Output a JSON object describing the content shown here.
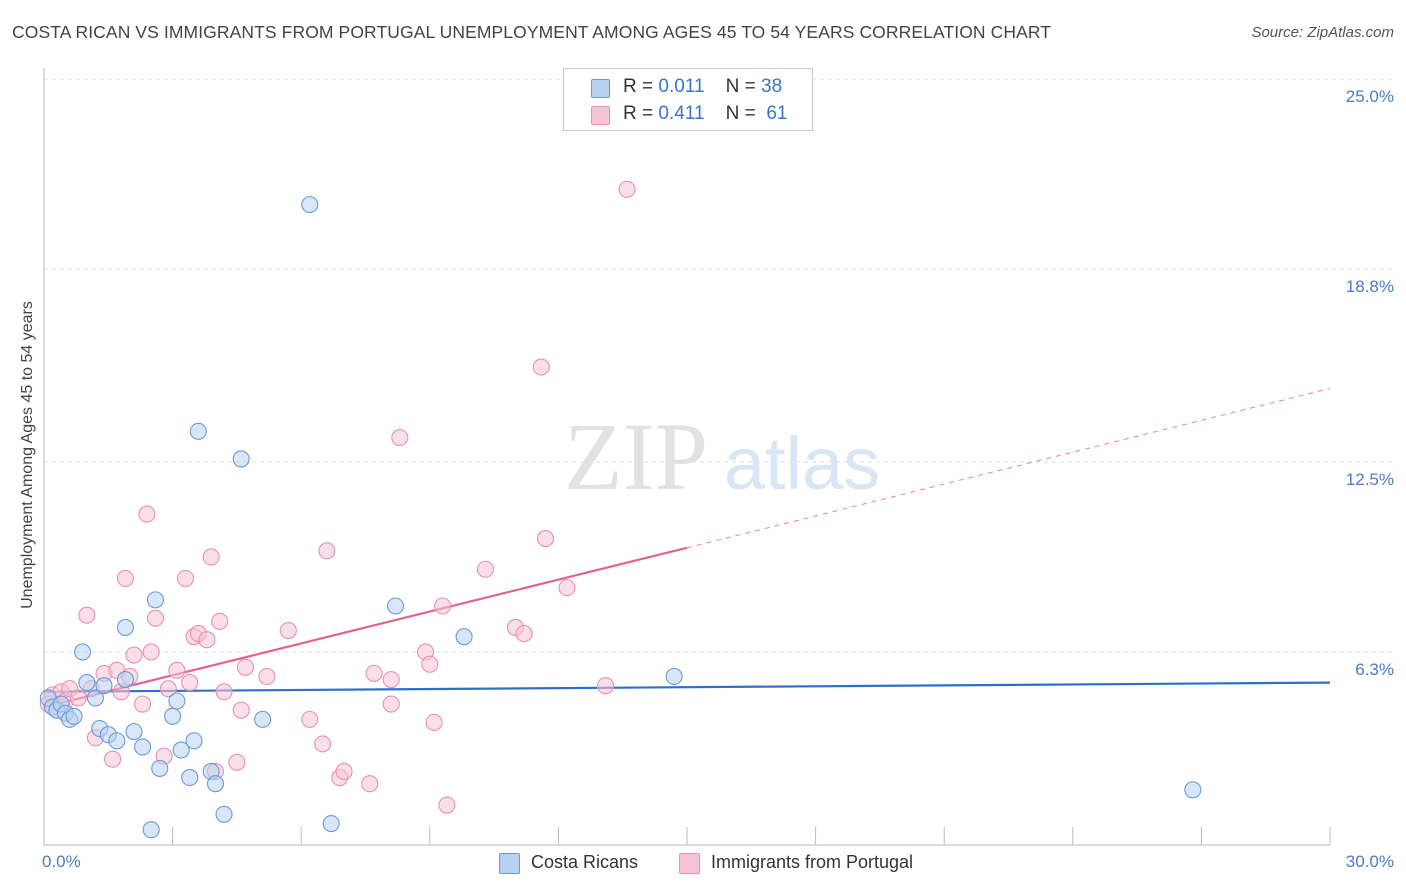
{
  "title": "COSTA RICAN VS IMMIGRANTS FROM PORTUGAL UNEMPLOYMENT AMONG AGES 45 TO 54 YEARS CORRELATION CHART",
  "source": "Source: ZipAtlas.com",
  "watermark": {
    "zip": "ZIP",
    "atlas": "atlas"
  },
  "legend": {
    "rows": [
      {
        "r_label": "R =",
        "r_value": "0.011",
        "n_label": "N =",
        "n_value": "38"
      },
      {
        "r_label": "R =",
        "r_value": "0.411",
        "n_label": "N =",
        "n_value": "61"
      }
    ]
  },
  "colors": {
    "blue_fill": "#b8d1f3",
    "blue_stroke": "#6a9ad8",
    "blue_line": "#2f6fcc",
    "pink_fill": "#f7c4d5",
    "pink_stroke": "#e891ad",
    "pink_line": "#e0648f",
    "tick_label": "#4a7cc7",
    "grid": "#dddddd"
  },
  "chart_data": {
    "type": "scatter",
    "title": "COSTA RICAN VS IMMIGRANTS FROM PORTUGAL UNEMPLOYMENT AMONG AGES 45 TO 54 YEARS CORRELATION CHART",
    "xlabel": "",
    "ylabel": "Unemployment Among Ages 45 to 54 years",
    "xlim": [
      0,
      30
    ],
    "ylim": [
      0,
      25
    ],
    "x_tick_labels": [
      "0.0%",
      "30.0%"
    ],
    "y_ticks": [
      6.3,
      12.5,
      18.8,
      25.0
    ],
    "y_tick_labels": [
      "6.3%",
      "12.5%",
      "18.8%",
      "25.0%"
    ],
    "grid": true,
    "legend_position": "bottom-center",
    "series": [
      {
        "name": "Costa Ricans",
        "color": "blue",
        "R": 0.011,
        "N": 38,
        "trend": {
          "x": [
            0,
            30
          ],
          "y": [
            5.0,
            5.3
          ],
          "dashed_extension": false
        },
        "points": [
          [
            0.1,
            4.8
          ],
          [
            0.2,
            4.5
          ],
          [
            0.3,
            4.4
          ],
          [
            0.4,
            4.6
          ],
          [
            0.5,
            4.3
          ],
          [
            0.6,
            4.1
          ],
          [
            0.7,
            4.2
          ],
          [
            0.9,
            6.3
          ],
          [
            1.0,
            5.3
          ],
          [
            1.2,
            4.8
          ],
          [
            1.3,
            3.8
          ],
          [
            1.4,
            5.2
          ],
          [
            1.5,
            3.6
          ],
          [
            1.7,
            3.4
          ],
          [
            1.9,
            7.1
          ],
          [
            1.9,
            5.4
          ],
          [
            2.1,
            3.7
          ],
          [
            2.3,
            3.2
          ],
          [
            2.5,
            0.5
          ],
          [
            2.6,
            8.0
          ],
          [
            2.7,
            2.5
          ],
          [
            3.0,
            4.2
          ],
          [
            3.1,
            4.7
          ],
          [
            3.2,
            3.1
          ],
          [
            3.4,
            2.2
          ],
          [
            3.5,
            3.4
          ],
          [
            3.6,
            13.5
          ],
          [
            3.9,
            2.4
          ],
          [
            4.0,
            2.0
          ],
          [
            4.2,
            1.0
          ],
          [
            4.6,
            12.6
          ],
          [
            5.1,
            4.1
          ],
          [
            6.2,
            20.9
          ],
          [
            6.7,
            0.7
          ],
          [
            8.2,
            7.8
          ],
          [
            9.8,
            6.8
          ],
          [
            14.7,
            5.5
          ],
          [
            26.8,
            1.8
          ]
        ]
      },
      {
        "name": "Immigrants from Portugal",
        "color": "pink",
        "R": 0.411,
        "N": 61,
        "trend": {
          "x": [
            0,
            15
          ],
          "y": [
            4.5,
            9.7
          ],
          "dashed_extension": {
            "x": [
              15,
              30
            ],
            "y": [
              9.7,
              14.9
            ]
          }
        },
        "points": [
          [
            0.1,
            4.6
          ],
          [
            0.2,
            4.9
          ],
          [
            0.3,
            4.4
          ],
          [
            0.4,
            5.0
          ],
          [
            0.5,
            4.7
          ],
          [
            0.6,
            5.1
          ],
          [
            0.8,
            4.8
          ],
          [
            1.0,
            7.5
          ],
          [
            1.1,
            5.1
          ],
          [
            1.2,
            3.5
          ],
          [
            1.4,
            5.6
          ],
          [
            1.6,
            2.8
          ],
          [
            1.7,
            5.7
          ],
          [
            1.8,
            5.0
          ],
          [
            1.9,
            8.7
          ],
          [
            2.0,
            5.5
          ],
          [
            2.1,
            6.2
          ],
          [
            2.3,
            4.6
          ],
          [
            2.4,
            10.8
          ],
          [
            2.5,
            6.3
          ],
          [
            2.6,
            7.4
          ],
          [
            2.8,
            2.9
          ],
          [
            2.9,
            5.1
          ],
          [
            3.1,
            5.7
          ],
          [
            3.3,
            8.7
          ],
          [
            3.4,
            5.3
          ],
          [
            3.5,
            6.8
          ],
          [
            3.6,
            6.9
          ],
          [
            3.8,
            6.7
          ],
          [
            3.9,
            9.4
          ],
          [
            4.0,
            2.4
          ],
          [
            4.1,
            7.3
          ],
          [
            4.2,
            5.0
          ],
          [
            4.5,
            2.7
          ],
          [
            4.6,
            4.4
          ],
          [
            4.7,
            5.8
          ],
          [
            5.2,
            5.5
          ],
          [
            5.7,
            7.0
          ],
          [
            6.2,
            4.1
          ],
          [
            6.5,
            3.3
          ],
          [
            6.6,
            9.6
          ],
          [
            6.9,
            2.2
          ],
          [
            7.0,
            2.4
          ],
          [
            7.7,
            5.6
          ],
          [
            8.1,
            4.6
          ],
          [
            8.1,
            5.4
          ],
          [
            8.3,
            13.3
          ],
          [
            8.9,
            6.3
          ],
          [
            9.0,
            5.9
          ],
          [
            9.3,
            7.8
          ],
          [
            9.4,
            1.3
          ],
          [
            10.3,
            9.0
          ],
          [
            11.0,
            7.1
          ],
          [
            11.2,
            6.9
          ],
          [
            11.6,
            15.6
          ],
          [
            11.7,
            10.0
          ],
          [
            12.2,
            8.4
          ],
          [
            13.1,
            5.2
          ],
          [
            13.6,
            21.4
          ],
          [
            9.1,
            4.0
          ],
          [
            7.6,
            2.0
          ]
        ]
      }
    ],
    "bottom_legend": [
      "Costa Ricans",
      "Immigrants from Portugal"
    ]
  }
}
